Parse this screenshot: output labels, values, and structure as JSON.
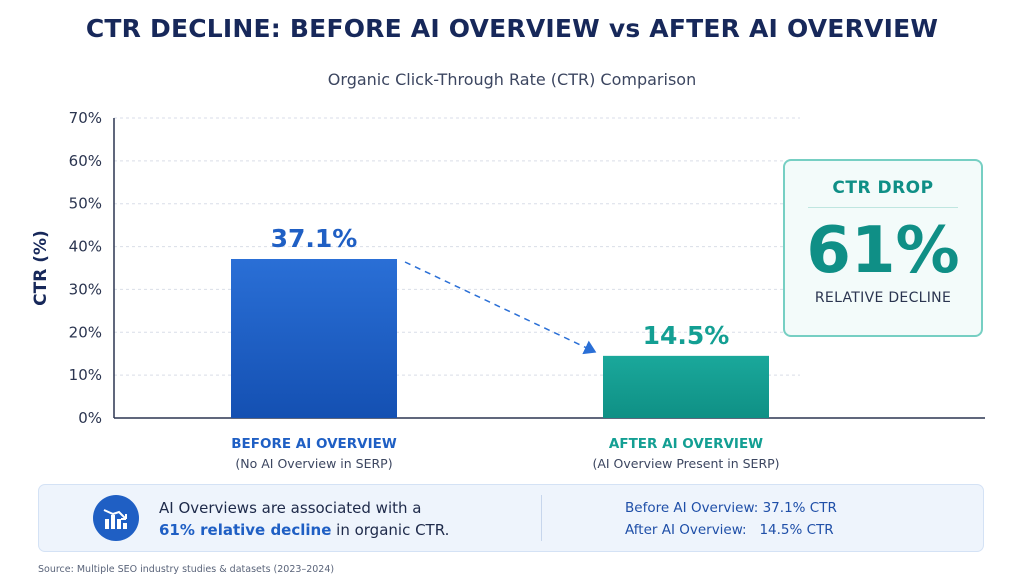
{
  "header": {
    "title": "CTR DECLINE: BEFORE AI OVERVIEW vs AFTER AI OVERVIEW",
    "subtitle": "Organic Click-Through Rate (CTR) Comparison"
  },
  "chart_data": {
    "type": "bar",
    "title": "CTR DECLINE: BEFORE AI OVERVIEW vs AFTER AI OVERVIEW",
    "subtitle": "Organic Click-Through Rate (CTR) Comparison",
    "ylabel": "CTR (%)",
    "xlabel": "",
    "ylim": [
      0,
      70
    ],
    "yticks": [
      0,
      10,
      20,
      30,
      40,
      50,
      60,
      70
    ],
    "ytick_labels": [
      "0%",
      "10%",
      "20%",
      "30%",
      "40%",
      "50%",
      "60%",
      "70%"
    ],
    "grid": true,
    "categories": [
      "BEFORE AI OVERVIEW",
      "AFTER AI OVERVIEW"
    ],
    "category_sublabels": [
      "(No AI Overview in SERP)",
      "(AI Overview Present in SERP)"
    ],
    "values": [
      37.1,
      14.5
    ],
    "value_labels": [
      "37.1%",
      "14.5%"
    ],
    "colors": [
      "#1f5fc4",
      "#139f93"
    ],
    "annotations": [
      "dashed arrow from BEFORE bar to AFTER bar"
    ]
  },
  "drop_card": {
    "title": "CTR DROP",
    "value": "61%",
    "subtitle": "RELATIVE DECLINE"
  },
  "summary": {
    "line1": "AI Overviews are associated with a",
    "highlight": "61% relative decline",
    "line2_rest": " in organic CTR.",
    "before": "Before AI Overview: 37.1% CTR",
    "after": "After AI Overview:   14.5% CTR",
    "icon": "chart-decline-icon"
  },
  "source": "Source: Multiple SEO industry studies & datasets (2023–2024)",
  "colors": {
    "title": "#17285a",
    "before": "#1f5fc4",
    "after": "#139f93",
    "accent_teal": "#0f8f86"
  }
}
